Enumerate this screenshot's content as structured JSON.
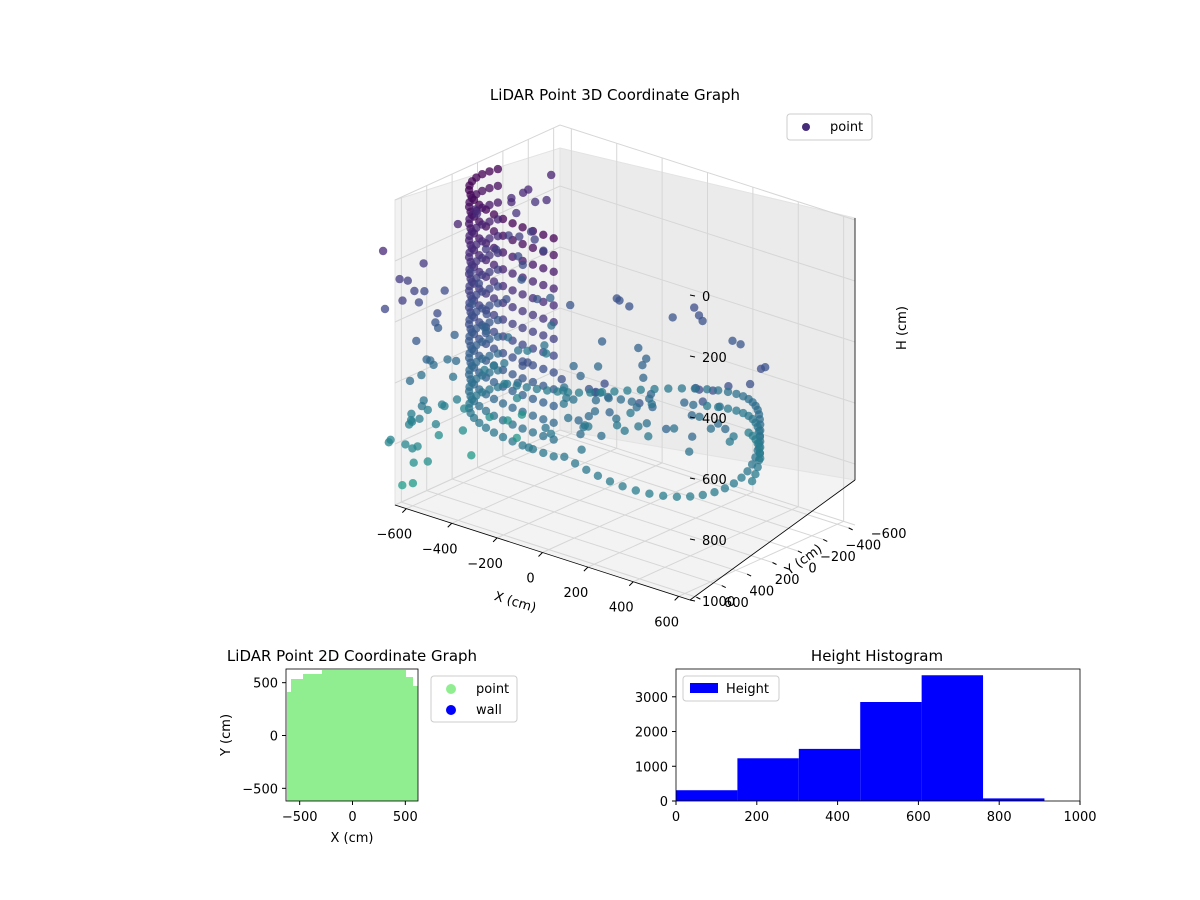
{
  "chart_data": [
    {
      "type": "scatter3d",
      "title": "LiDAR Point 3D Coordinate Graph",
      "xlabel": "X (cm)",
      "ylabel": "Y (cm)",
      "zlabel": "H (cm)",
      "x_ticks": [
        "−600",
        "−400",
        "−200",
        "0",
        "200",
        "400",
        "600"
      ],
      "y_ticks": [
        "−600",
        "−400",
        "−200",
        "0",
        "200",
        "400",
        "600"
      ],
      "z_ticks": [
        "0",
        "200",
        "400",
        "600",
        "800",
        "1000"
      ],
      "xlim": [
        -650,
        650
      ],
      "ylim": [
        -650,
        650
      ],
      "zlim": [
        0,
        1000
      ],
      "z_inverted": true,
      "legend": [
        "point"
      ],
      "legend_position": "top-right",
      "colormap": "viridis",
      "grid": true
    },
    {
      "type": "scatter",
      "title": "LiDAR Point 2D Coordinate Graph",
      "xlabel": "X (cm)",
      "ylabel": "Y (cm)",
      "x_ticks": [
        "−500",
        "0",
        "500"
      ],
      "y_ticks": [
        "500",
        "0",
        "−500"
      ],
      "xlim": [
        -620,
        620
      ],
      "ylim": [
        -620,
        620
      ],
      "series": [
        {
          "name": "point",
          "color": "#90ee90"
        },
        {
          "name": "wall",
          "color": "#0000ff"
        }
      ],
      "legend_position": "outside-right"
    },
    {
      "type": "bar",
      "title": "Height Histogram",
      "xlabel": "",
      "ylabel": "",
      "bin_edges": [
        0,
        152,
        304,
        456,
        608,
        760,
        912
      ],
      "values": [
        310,
        1230,
        1500,
        2850,
        3620,
        75
      ],
      "xlim": [
        0,
        1000
      ],
      "ylim": [
        0,
        3800
      ],
      "x_ticks": [
        "0",
        "200",
        "400",
        "600",
        "800",
        "1000"
      ],
      "y_ticks": [
        "0",
        "1000",
        "2000",
        "3000"
      ],
      "series": [
        {
          "name": "Height",
          "color": "#0000ff"
        }
      ],
      "legend_position": "top-left"
    }
  ]
}
